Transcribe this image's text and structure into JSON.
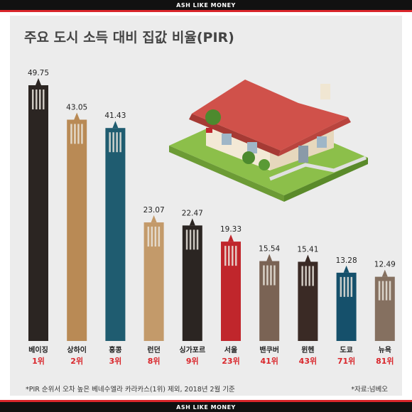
{
  "band_text": "ASH LIKE MONEY",
  "chart_data": {
    "type": "bar",
    "title": "주요 도시 소득 대비 집값 비율(PIR)",
    "categories": [
      "베이징",
      "상하이",
      "홍콩",
      "런던",
      "싱가포르",
      "서울",
      "밴쿠버",
      "뮌헨",
      "도쿄",
      "뉴욕"
    ],
    "ranks": [
      "1위",
      "2위",
      "3위",
      "8위",
      "9위",
      "23위",
      "41위",
      "43위",
      "71위",
      "81위"
    ],
    "values": [
      49.75,
      43.05,
      41.43,
      23.07,
      22.47,
      19.33,
      15.54,
      15.41,
      13.28,
      12.49
    ],
    "value_labels": [
      "49.75",
      "43.05",
      "41.43",
      "23.07",
      "22.47",
      "19.33",
      "15.54",
      "15.41",
      "13.28",
      "12.49"
    ],
    "colors": [
      "#2b2522",
      "#b98a55",
      "#1f5c70",
      "#c39a6a",
      "#2b2522",
      "#c0262c",
      "#7a6354",
      "#3a2a25",
      "#15506b",
      "#857060"
    ],
    "accent_color": "#d9262b",
    "xlabel": "",
    "ylabel": "",
    "ylim": [
      0,
      50
    ]
  },
  "footnote_left": "*PIR 순위서 오차 높은 베네수엘라 카라카스(1위) 제외, 2018년 2월 기준",
  "footnote_right": "*자료:넘베오"
}
